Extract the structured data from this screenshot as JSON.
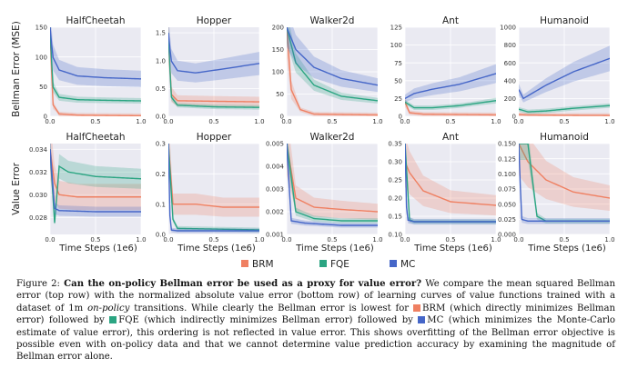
{
  "colors": {
    "brm": "#ef8062",
    "fqe": "#2ba582",
    "mc": "#4566c8",
    "panel_bg": "#eaeaf2",
    "grid": "#ffffff"
  },
  "legend": [
    {
      "key": "brm",
      "label": "BRM",
      "color": "#ef8062"
    },
    {
      "key": "fqe",
      "label": "FQE",
      "color": "#2ba582"
    },
    {
      "key": "mc",
      "label": "MC",
      "color": "#4566c8"
    }
  ],
  "row_labels": {
    "top": "Bellman Error (MSE)",
    "bottom": "Value Error"
  },
  "xlabel": "Time Steps (1e6)",
  "caption": {
    "figure_label": "Figure 2:",
    "bold_title": "Can the on-policy Bellman error be used as a proxy for value error?",
    "s1": " We compare the mean squared Bellman error (top row) with the normalized absolute value error (bottom row) of learning curves of value functions trained with a dataset of 1m ",
    "s1_italic": "on-policy",
    "s2": " transitions. While clearly the Bellman error is lowest for ",
    "brm_text": "BRM (which directly minimizes Bellman error) followed by ",
    "fqe_text": "FQE (which indirectly minimizes Bellman error) followed by ",
    "mc_text": "MC (which minimizes the Monte-Carlo estimate of value error), this ordering is not reflected in value error. This shows overfitting of the Bellman error objective is possible even with on-policy data and that we cannot determine value prediction accuracy by examining the magnitude of Bellman error alone."
  },
  "chart_data": [
    {
      "type": "line",
      "title": "HalfCheetah",
      "row": "top",
      "ylabel": "Bellman Error (MSE)",
      "xlim": [
        0,
        1.0
      ],
      "ylim": [
        0,
        150
      ],
      "yticks": [
        "0",
        "50",
        "100",
        "150"
      ],
      "xticks": [
        "0.0",
        "0.5",
        "1.0"
      ],
      "series": [
        {
          "name": "BRM",
          "x": [
            0,
            0.03,
            0.1,
            0.3,
            1.0
          ],
          "y": [
            150,
            20,
            4,
            2,
            1
          ]
        },
        {
          "name": "FQE",
          "x": [
            0,
            0.03,
            0.1,
            0.3,
            0.6,
            1.0
          ],
          "y": [
            150,
            50,
            32,
            28,
            27,
            26
          ]
        },
        {
          "name": "MC",
          "x": [
            0,
            0.03,
            0.1,
            0.3,
            0.6,
            1.0
          ],
          "y": [
            150,
            100,
            78,
            68,
            65,
            63
          ]
        }
      ]
    },
    {
      "type": "line",
      "title": "Hopper",
      "row": "top",
      "xlim": [
        0,
        1.0
      ],
      "ylim": [
        0,
        1.6
      ],
      "yticks": [
        "0.0",
        "0.5",
        "1.0",
        "1.5"
      ],
      "xticks": [
        "0.0",
        "0.5",
        "1.0"
      ],
      "series": [
        {
          "name": "BRM",
          "x": [
            0,
            0.03,
            0.1,
            0.5,
            1.0
          ],
          "y": [
            1.5,
            0.4,
            0.28,
            0.27,
            0.26
          ]
        },
        {
          "name": "FQE",
          "x": [
            0,
            0.03,
            0.1,
            0.5,
            1.0
          ],
          "y": [
            1.5,
            0.35,
            0.2,
            0.17,
            0.16
          ]
        },
        {
          "name": "MC",
          "x": [
            0,
            0.03,
            0.1,
            0.3,
            0.6,
            1.0
          ],
          "y": [
            1.5,
            1.0,
            0.82,
            0.78,
            0.85,
            0.95
          ]
        }
      ]
    },
    {
      "type": "line",
      "title": "Walker2d",
      "row": "top",
      "xlim": [
        0,
        1.0
      ],
      "ylim": [
        0,
        200
      ],
      "yticks": [
        "0",
        "50",
        "100",
        "150",
        "200"
      ],
      "xticks": [
        "0.0",
        "0.5",
        "1.0"
      ],
      "series": [
        {
          "name": "BRM",
          "x": [
            0,
            0.05,
            0.15,
            0.3,
            1.0
          ],
          "y": [
            200,
            60,
            15,
            5,
            3
          ]
        },
        {
          "name": "FQE",
          "x": [
            0,
            0.1,
            0.3,
            0.6,
            1.0
          ],
          "y": [
            200,
            120,
            70,
            45,
            35
          ]
        },
        {
          "name": "MC",
          "x": [
            0,
            0.1,
            0.3,
            0.6,
            1.0
          ],
          "y": [
            200,
            150,
            110,
            85,
            70
          ]
        }
      ]
    },
    {
      "type": "line",
      "title": "Ant",
      "row": "top",
      "xlim": [
        0,
        1.0
      ],
      "ylim": [
        0,
        125
      ],
      "yticks": [
        "0",
        "25",
        "50",
        "75",
        "100",
        "125"
      ],
      "xticks": [
        "0.0",
        "0.5",
        "1.0"
      ],
      "series": [
        {
          "name": "BRM",
          "x": [
            0,
            0.05,
            0.2,
            1.0
          ],
          "y": [
            20,
            5,
            3,
            2
          ]
        },
        {
          "name": "FQE",
          "x": [
            0,
            0.1,
            0.3,
            0.6,
            1.0
          ],
          "y": [
            20,
            12,
            12,
            15,
            22
          ]
        },
        {
          "name": "MC",
          "x": [
            0,
            0.1,
            0.3,
            0.6,
            1.0
          ],
          "y": [
            25,
            32,
            38,
            45,
            60
          ]
        }
      ]
    },
    {
      "type": "line",
      "title": "Humanoid",
      "row": "top",
      "xlim": [
        0,
        1.0
      ],
      "ylim": [
        0,
        1000
      ],
      "yticks": [
        "0",
        "200",
        "400",
        "600",
        "800",
        "1000"
      ],
      "xticks": [
        "0.0",
        "0.5",
        "1.0"
      ],
      "series": [
        {
          "name": "BRM",
          "x": [
            0,
            0.1,
            0.5,
            1.0
          ],
          "y": [
            20,
            15,
            12,
            10
          ]
        },
        {
          "name": "FQE",
          "x": [
            0,
            0.1,
            0.3,
            0.6,
            1.0
          ],
          "y": [
            80,
            50,
            60,
            90,
            120
          ]
        },
        {
          "name": "MC",
          "x": [
            0,
            0.05,
            0.3,
            0.6,
            1.0
          ],
          "y": [
            300,
            200,
            350,
            500,
            650
          ]
        }
      ]
    },
    {
      "type": "line",
      "title": "HalfCheetah",
      "row": "bottom",
      "ylabel": "Value Error",
      "xlim": [
        0,
        1.0
      ],
      "ylim": [
        0.0265,
        0.0345
      ],
      "yticks": [
        "0.028",
        "0.030",
        "0.032",
        "0.034"
      ],
      "xticks": [
        "0.0",
        "0.5",
        "1.0"
      ],
      "series": [
        {
          "name": "BRM",
          "x": [
            0,
            0.05,
            0.1,
            0.3,
            1.0
          ],
          "y": [
            0.034,
            0.031,
            0.03,
            0.0298,
            0.0298
          ]
        },
        {
          "name": "FQE",
          "x": [
            0,
            0.05,
            0.1,
            0.2,
            0.5,
            1.0
          ],
          "y": [
            0.034,
            0.0275,
            0.0325,
            0.032,
            0.0316,
            0.0314
          ]
        },
        {
          "name": "MC",
          "x": [
            0,
            0.05,
            0.1,
            0.5,
            1.0
          ],
          "y": [
            0.034,
            0.0288,
            0.0286,
            0.0285,
            0.0285
          ]
        }
      ]
    },
    {
      "type": "line",
      "title": "Hopper",
      "row": "bottom",
      "xlim": [
        0,
        1.0
      ],
      "ylim": [
        0,
        0.3
      ],
      "yticks": [
        "0.0",
        "0.1",
        "0.2",
        "0.3"
      ],
      "xticks": [
        "0.0",
        "0.5",
        "1.0"
      ],
      "series": [
        {
          "name": "BRM",
          "x": [
            0,
            0.05,
            0.3,
            0.6,
            1.0
          ],
          "y": [
            0.3,
            0.1,
            0.1,
            0.09,
            0.09
          ]
        },
        {
          "name": "FQE",
          "x": [
            0,
            0.05,
            0.1,
            1.0
          ],
          "y": [
            0.3,
            0.05,
            0.02,
            0.015
          ]
        },
        {
          "name": "MC",
          "x": [
            0,
            0.02,
            0.1,
            1.0
          ],
          "y": [
            0.3,
            0.015,
            0.012,
            0.012
          ]
        }
      ]
    },
    {
      "type": "line",
      "title": "Walker2d",
      "row": "bottom",
      "xlim": [
        0,
        1.0
      ],
      "ylim": [
        0.001,
        0.005
      ],
      "yticks": [
        "0.001",
        "0.002",
        "0.003",
        "0.004",
        "0.005"
      ],
      "xticks": [
        "0.0",
        "0.5",
        "1.0"
      ],
      "series": [
        {
          "name": "BRM",
          "x": [
            0,
            0.1,
            0.3,
            0.6,
            1.0
          ],
          "y": [
            0.005,
            0.0026,
            0.0022,
            0.0021,
            0.002
          ]
        },
        {
          "name": "FQE",
          "x": [
            0,
            0.1,
            0.3,
            0.6,
            1.0
          ],
          "y": [
            0.005,
            0.002,
            0.0017,
            0.0016,
            0.0016
          ]
        },
        {
          "name": "MC",
          "x": [
            0,
            0.05,
            0.2,
            0.6,
            1.0
          ],
          "y": [
            0.005,
            0.0016,
            0.0015,
            0.0014,
            0.0014
          ]
        }
      ]
    },
    {
      "type": "line",
      "title": "Ant",
      "row": "bottom",
      "xlim": [
        0,
        1.0
      ],
      "ylim": [
        0.1,
        0.35
      ],
      "yticks": [
        "0.10",
        "0.15",
        "0.20",
        "0.25",
        "0.30",
        "0.35"
      ],
      "xticks": [
        "0.0",
        "0.5",
        "1.0"
      ],
      "series": [
        {
          "name": "BRM",
          "x": [
            0,
            0.05,
            0.2,
            0.5,
            1.0
          ],
          "y": [
            0.3,
            0.27,
            0.22,
            0.19,
            0.18
          ]
        },
        {
          "name": "FQE",
          "x": [
            0,
            0.05,
            0.1,
            1.0
          ],
          "y": [
            0.35,
            0.14,
            0.135,
            0.135
          ]
        },
        {
          "name": "MC",
          "x": [
            0,
            0.02,
            0.1,
            1.0
          ],
          "y": [
            0.35,
            0.14,
            0.135,
            0.135
          ]
        }
      ]
    },
    {
      "type": "line",
      "title": "Humanoid",
      "row": "bottom",
      "xlim": [
        0,
        1.0
      ],
      "ylim": [
        0,
        0.15
      ],
      "yticks": [
        "0.000",
        "0.025",
        "0.050",
        "0.075",
        "0.100",
        "0.125",
        "0.150"
      ],
      "xticks": [
        "0.0",
        "0.5",
        "1.0"
      ],
      "series": [
        {
          "name": "BRM",
          "x": [
            0,
            0.1,
            0.3,
            0.6,
            1.0
          ],
          "y": [
            0.15,
            0.12,
            0.09,
            0.07,
            0.06
          ]
        },
        {
          "name": "FQE",
          "x": [
            0,
            0.1,
            0.2,
            0.3,
            1.0
          ],
          "y": [
            0.15,
            0.15,
            0.03,
            0.022,
            0.022
          ]
        },
        {
          "name": "MC",
          "x": [
            0,
            0.03,
            0.1,
            1.0
          ],
          "y": [
            0.15,
            0.025,
            0.022,
            0.022
          ]
        }
      ]
    }
  ]
}
